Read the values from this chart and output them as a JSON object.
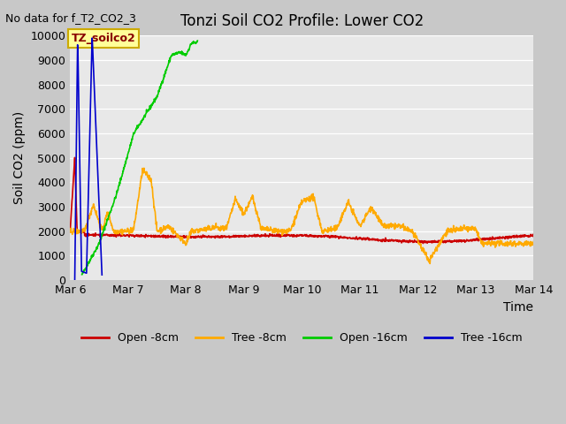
{
  "title": "Tonzi Soil CO2 Profile: Lower CO2",
  "subtitle": "No data for f_T2_CO2_3",
  "ylabel": "Soil CO2 (ppm)",
  "xlabel": "Time",
  "ylim": [
    0,
    10000
  ],
  "fig_bg_color": "#c8c8c8",
  "plot_bg_color": "#e8e8e8",
  "legend_labels": [
    "Open -8cm",
    "Tree -8cm",
    "Open -16cm",
    "Tree -16cm"
  ],
  "legend_colors": [
    "#cc0000",
    "#ffaa00",
    "#00cc00",
    "#0000cc"
  ],
  "annotation_text": "TZ_soilco2",
  "annotation_color": "#880000",
  "annotation_bg": "#ffff99",
  "annotation_border": "#ccaa00",
  "open_8cm_color": "#cc0000",
  "tree_8cm_color": "#ffaa00",
  "open_16cm_color": "#00cc00",
  "tree_16cm_color": "#0000cc",
  "line_lw": 1.2,
  "xtick_labels": [
    "Mar 6",
    "Mar 7",
    "Mar 8",
    "Mar 9",
    "Mar 10",
    "Mar 11",
    "Mar 12",
    "Mar 13",
    "Mar 14"
  ],
  "ytick_values": [
    0,
    1000,
    2000,
    3000,
    4000,
    5000,
    6000,
    7000,
    8000,
    9000,
    10000
  ]
}
